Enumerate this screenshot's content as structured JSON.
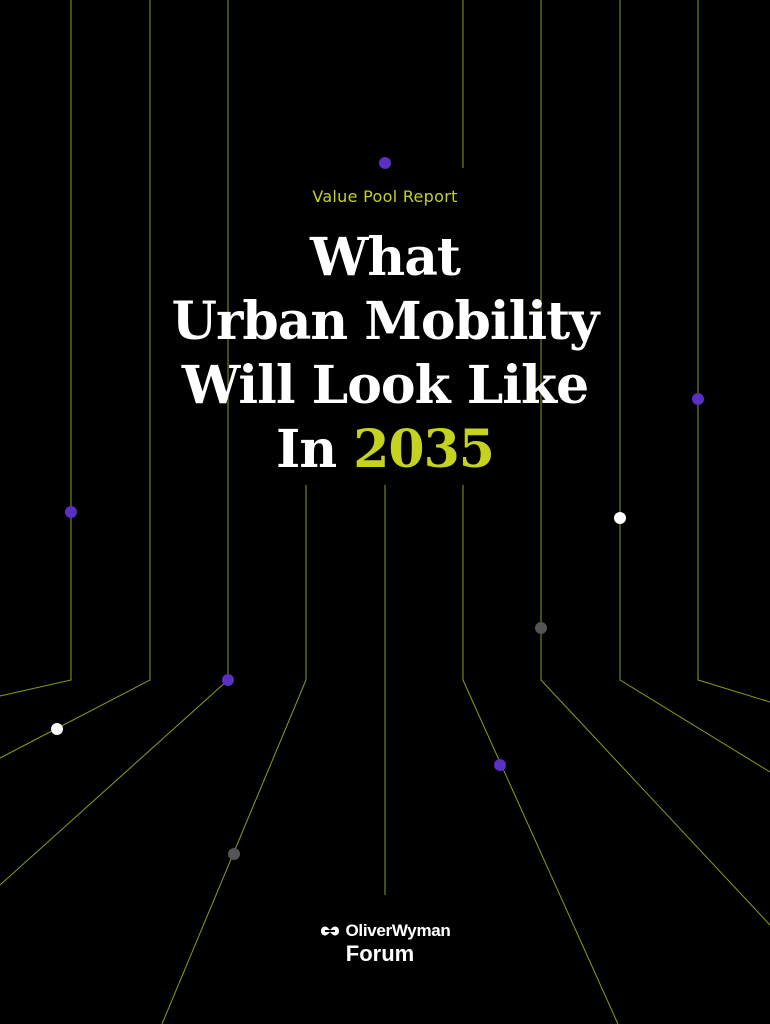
{
  "colors": {
    "background": "#000000",
    "accent": "#c5d31e",
    "line": "#8f9a17",
    "dot_purple": "#5a2fc4",
    "dot_white": "#ffffff",
    "dot_gray": "#555555"
  },
  "cover": {
    "eyebrow": "Value Pool Report",
    "title_lines": [
      "What",
      "Urban Mobility",
      "Will Look Like"
    ],
    "title_last_prefix": "In",
    "title_year": "2035"
  },
  "logo": {
    "mark_icon": "oliver-wyman-mark-icon",
    "brand": "OliverWyman",
    "sub": "Forum"
  }
}
